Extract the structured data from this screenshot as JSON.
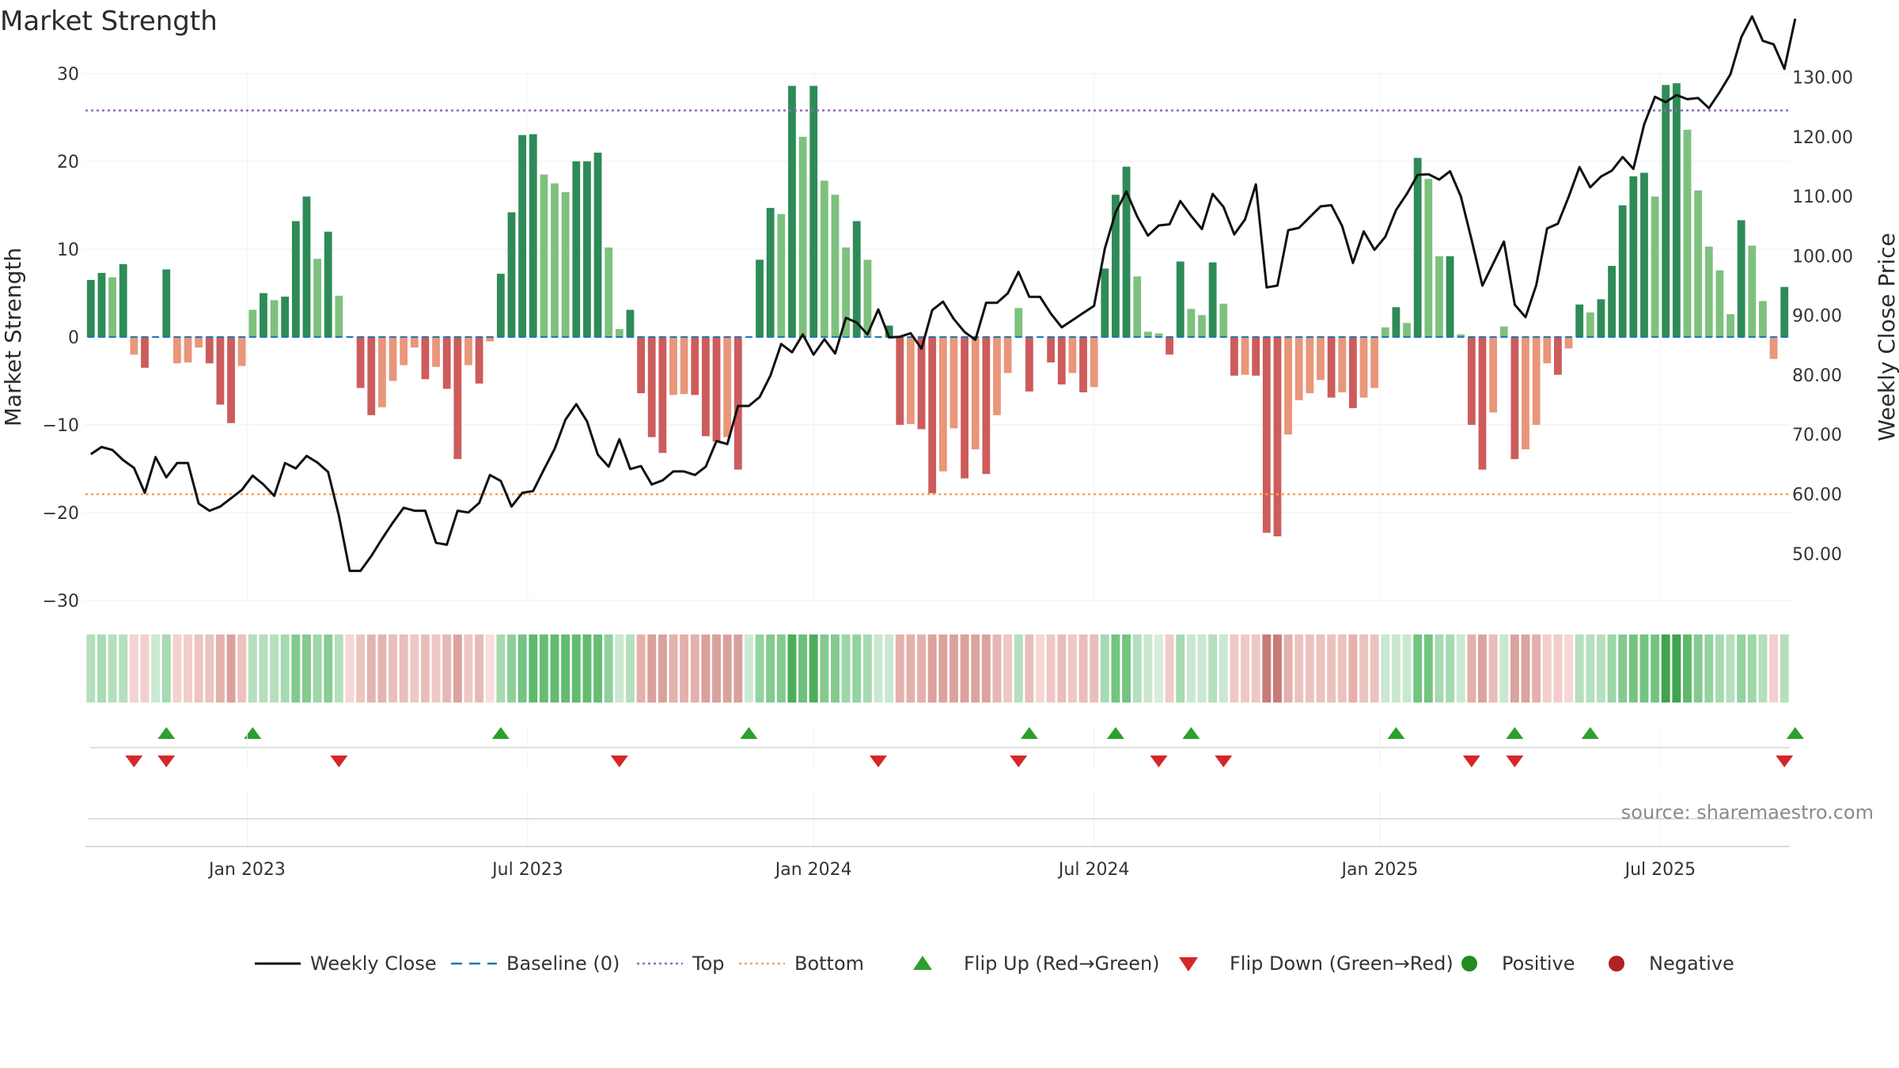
{
  "chart_data": {
    "type": "bar",
    "title": "Market Strength",
    "ylabel": "Market Strength",
    "y2label": "Weekly Close Price",
    "ylim": [
      -30,
      30
    ],
    "y2lim": [
      42.0,
      130.6
    ],
    "yticks": [
      30,
      20,
      10,
      0,
      -10,
      -20,
      -30
    ],
    "y2ticks": [
      130,
      120,
      110,
      100,
      90,
      80,
      70,
      60,
      50
    ],
    "y2tick_labels": [
      "130.00",
      "120.00",
      "110.00",
      "100.00",
      "90.00",
      "80.00",
      "70.00",
      "60.00",
      "50.00"
    ],
    "xticks": [
      {
        "label": "Jan 2023",
        "index": 14.5
      },
      {
        "label": "Jul 2023",
        "index": 40.5
      },
      {
        "label": "Jan 2024",
        "index": 67
      },
      {
        "label": "Jul 2024",
        "index": 93
      },
      {
        "label": "Jan 2025",
        "index": 119.5
      },
      {
        "label": "Jul 2025",
        "index": 145.5
      }
    ],
    "top_level": 25.8,
    "bottom_level": -17.9,
    "strength": [
      6.5,
      7.3,
      6.8,
      8.3,
      -2,
      -3.5,
      0,
      7.7,
      -3,
      -2.9,
      -1.2,
      -3,
      -7.7,
      -9.8,
      -3.3,
      3.1,
      5,
      4.2,
      4.6,
      13.2,
      16,
      8.9,
      12,
      4.7,
      0,
      -5.8,
      -8.9,
      -8,
      -5,
      -3.2,
      -1.2,
      -4.8,
      -3.4,
      -5.9,
      -13.9,
      -3.2,
      -5.3,
      -0.5,
      7.2,
      14.2,
      23,
      23.1,
      18.5,
      17.5,
      16.5,
      20,
      20,
      21,
      10.2,
      0.9,
      3.1,
      -6.4,
      -11.4,
      -13.2,
      -6.6,
      -6.5,
      -6.6,
      -11.3,
      -11.9,
      -11.4,
      -15.1,
      0,
      8.8,
      14.7,
      14,
      28.6,
      22.8,
      28.6,
      17.8,
      16.2,
      10.2,
      13.2,
      8.8,
      0,
      1.3,
      -10,
      -9.9,
      -10.5,
      -17.8,
      -15.3,
      -10.4,
      -16.1,
      -12.8,
      -15.6,
      -8.9,
      -4.1,
      3.3,
      -6.2,
      0,
      -2.9,
      -5.4,
      -4.1,
      -6.3,
      -5.7,
      7.8,
      16.2,
      19.4,
      6.9,
      0.6,
      0.4,
      -2,
      8.6,
      3.2,
      2.5,
      8.5,
      3.8,
      -4.4,
      -4.3,
      -4.4,
      -22.3,
      -22.7,
      -11.1,
      -7.2,
      -6.4,
      -4.9,
      -6.9,
      -6.3,
      -8.1,
      -6.9,
      -5.8,
      1.1,
      3.4,
      1.6,
      20.4,
      18,
      9.2,
      9.2,
      0.3,
      -10,
      -15.1,
      -8.6,
      1.2,
      -13.9,
      -12.8,
      -10,
      -3,
      -4.3,
      -1.3,
      3.7,
      2.8,
      4.3,
      8.1,
      15,
      18.3,
      18.7,
      16,
      28.7,
      28.9,
      23.6,
      16.7,
      10.3,
      7.6,
      2.6,
      13.3,
      10.4,
      4.1,
      -2.5,
      5.7
    ],
    "close": [
      66.7,
      67.9,
      67.4,
      65.7,
      64.4,
      60.2,
      66.2,
      62.8,
      65.2,
      65.2,
      58.4,
      57.2,
      57.9,
      59.3,
      60.7,
      63.1,
      61.6,
      59.7,
      65.2,
      64.3,
      66.4,
      65.3,
      63.7,
      56.3,
      47.1,
      47.1,
      49.6,
      52.5,
      55.2,
      57.7,
      57.2,
      57.2,
      51.8,
      51.5,
      57.2,
      56.9,
      58.5,
      63.2,
      62.2,
      57.9,
      60.2,
      60.5,
      64.1,
      67.6,
      72.5,
      75.1,
      72.2,
      66.6,
      64.6,
      69.2,
      64.2,
      64.7,
      61.6,
      62.3,
      63.8,
      63.8,
      63.2,
      64.6,
      68.9,
      68.4,
      74.8,
      74.8,
      76.3,
      79.9,
      85.2,
      83.8,
      86.8,
      83.4,
      86,
      83.6,
      89.6,
      88.8,
      86.8,
      91,
      86.3,
      86.4,
      87,
      84.4,
      90.9,
      92.3,
      89.4,
      87.2,
      85.9,
      92.1,
      92.1,
      93.7,
      97.3,
      93.1,
      93.1,
      90.3,
      88,
      89.2,
      90.4,
      91.6,
      101.2,
      107.3,
      110.8,
      106.6,
      103.4,
      105.1,
      105.3,
      109.2,
      106.7,
      104.5,
      110.4,
      108.2,
      103.6,
      106.1,
      112,
      94.7,
      95,
      104.3,
      104.7,
      106.5,
      108.3,
      108.5,
      105,
      98.8,
      104.1,
      101,
      103.2,
      107.7,
      110.4,
      113.6,
      113.7,
      112.8,
      114.2,
      110,
      102.7,
      95,
      98.7,
      102.4,
      91.8,
      89.7,
      95.1,
      104.6,
      105.4,
      109.9,
      114.9,
      111.5,
      113.3,
      114.3,
      116.6,
      114.6,
      122.1,
      126.7,
      125.8,
      127,
      126.3,
      126.5,
      124.8,
      127.5,
      130.5,
      136.7,
      140.2,
      136.1,
      135.5,
      131.4,
      139.8
    ],
    "strip_colors": [
      "#b5dfbd",
      "#a9dbb3",
      "#b5dfbd",
      "#b5dfbd",
      "#f4d3d1",
      "#f3d0cd",
      "#cbe9d1",
      "#a6dab0",
      "#f3d2cf",
      "#f2cdca",
      "#ecc4c0",
      "#ecc4c0",
      "#e4b0ab",
      "#d9a19c",
      "#ebc2be",
      "#b5dfbd",
      "#b5dfbd",
      "#b5dfbd",
      "#a7dab1",
      "#84c98f",
      "#84c98f",
      "#9dd6a7",
      "#89cc94",
      "#b5dfbd",
      "#f5d8d6",
      "#ecc4c0",
      "#e2b5b1",
      "#e2b5b1",
      "#e8bebb",
      "#e8bebb",
      "#eec8c5",
      "#e8bebb",
      "#eec8c5",
      "#e5b8b4",
      "#dba39e",
      "#eec8c5",
      "#e6bab6",
      "#f7dfdd",
      "#a7dab1",
      "#8ed09a",
      "#74c481",
      "#5eb96b",
      "#66bd73",
      "#62bb6f",
      "#62bb6f",
      "#62bb6f",
      "#62bb6f",
      "#66bd73",
      "#91d19c",
      "#cbe9d1",
      "#b5dfbd",
      "#e4b0ab",
      "#d9a19c",
      "#d9a19c",
      "#e4b0ab",
      "#e4b0ab",
      "#e4b0ab",
      "#d9a19c",
      "#d9a19c",
      "#d9a19c",
      "#d9a19c",
      "#cde9d3",
      "#94d39f",
      "#84c98f",
      "#84c98f",
      "#4cae5b",
      "#6cc07a",
      "#4cae5b",
      "#84c98f",
      "#84c98f",
      "#9dd6a7",
      "#94d39f",
      "#a7dab1",
      "#c9e8cf",
      "#c9e8cf",
      "#e4b0ab",
      "#e4b0ab",
      "#e4b0ab",
      "#dba39e",
      "#dba39e",
      "#dba39e",
      "#dba39e",
      "#dba39e",
      "#dba39e",
      "#e5b8b4",
      "#eec8c5",
      "#b5dfbd",
      "#e8bebb",
      "#f5d8d6",
      "#eec8c5",
      "#e8bebb",
      "#eec8c5",
      "#e8bebb",
      "#e8bebb",
      "#a6dab0",
      "#74c481",
      "#74c481",
      "#b5dfbd",
      "#c9e8cf",
      "#d7eedc",
      "#f1cbc8",
      "#a7dab1",
      "#c9e8cf",
      "#c9e8cf",
      "#b5dfbd",
      "#c9e8cf",
      "#eec8c5",
      "#eec8c5",
      "#eec8c5",
      "#c97b77",
      "#c97b77",
      "#e4b0ab",
      "#ebc2be",
      "#ebc2be",
      "#ebc2be",
      "#ebc2be",
      "#ebc2be",
      "#e4b0ab",
      "#ebc2be",
      "#ebc2be",
      "#c9e8cf",
      "#c9e8cf",
      "#c9e8cf",
      "#74c481",
      "#74c481",
      "#a7dab1",
      "#a7dab1",
      "#cbe9d1",
      "#e4b0ab",
      "#dba39e",
      "#e8bebb",
      "#c9e8cf",
      "#dba39e",
      "#dba39e",
      "#e4b0ab",
      "#f2cdca",
      "#f2cdca",
      "#f5d8d6",
      "#b5dfbd",
      "#b5dfbd",
      "#b5dfbd",
      "#9dd6a7",
      "#84c98f",
      "#74c481",
      "#74c481",
      "#74c481",
      "#3fa350",
      "#3fa350",
      "#5eb96b",
      "#84c98f",
      "#94d39f",
      "#a7dab1",
      "#b5dfbd",
      "#94d39f",
      "#9dd6a7",
      "#b5dfbd",
      "#f3d0cd",
      "#b5dfbd"
    ],
    "flip_up_index": [
      7,
      15,
      38,
      61,
      87,
      95,
      102,
      121,
      132,
      139,
      158
    ],
    "flip_down_index": [
      4,
      7,
      23,
      49,
      73,
      86,
      99,
      105,
      128,
      132,
      157
    ],
    "legend": [
      {
        "label": "Weekly Close",
        "kind": "line",
        "color": "#111111"
      },
      {
        "label": "Baseline (0)",
        "kind": "dash",
        "color": "#1f77b4"
      },
      {
        "label": "Top",
        "kind": "dot",
        "color": "#9467bd"
      },
      {
        "label": "Bottom",
        "kind": "dot",
        "color": "#ff9f50"
      },
      {
        "label": "Flip Up (Red→Green)",
        "kind": "up",
        "color": "#2ca02c"
      },
      {
        "label": "Flip Down (Green→Red)",
        "kind": "down",
        "color": "#d62728"
      },
      {
        "label": "Positive",
        "kind": "circle",
        "color": "#228b22"
      },
      {
        "label": "Negative",
        "kind": "circle",
        "color": "#b22222"
      }
    ],
    "source": "source: sharemaestro.com",
    "colors": {
      "pos_strong": "#2e8b57",
      "pos_light": "#7ec17e",
      "neg_strong": "#cd5c5c",
      "neg_light": "#e9967a"
    }
  }
}
